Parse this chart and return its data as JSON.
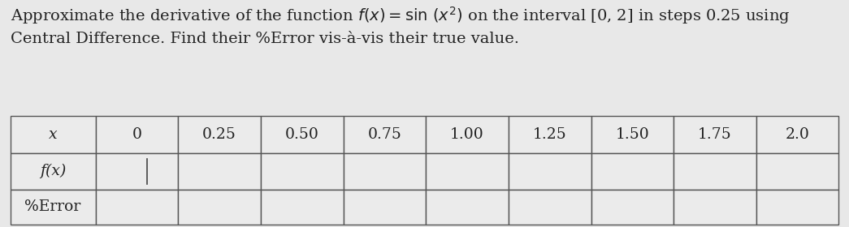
{
  "col_headers": [
    "x",
    "0",
    "0.25",
    "0.50",
    "0.75",
    "1.00",
    "1.25",
    "1.50",
    "1.75",
    "2.0"
  ],
  "row_labels": [
    "f(x)",
    "%Error"
  ],
  "bg_color": "#e8e8e8",
  "cell_color": "#ebebeb",
  "border_color": "#555555",
  "text_color": "#222222",
  "title_fontsize": 14.0,
  "table_fontsize": 13.5,
  "fig_width": 10.45,
  "fig_height": 2.8,
  "title_line1": "Approximate the derivative of the function $f(x) = \\sin\\,(x^2)$ on the interval [0, 2] in steps 0.25 using",
  "title_line2": "Central Difference. Find their %Error vis-à-vis their true value."
}
